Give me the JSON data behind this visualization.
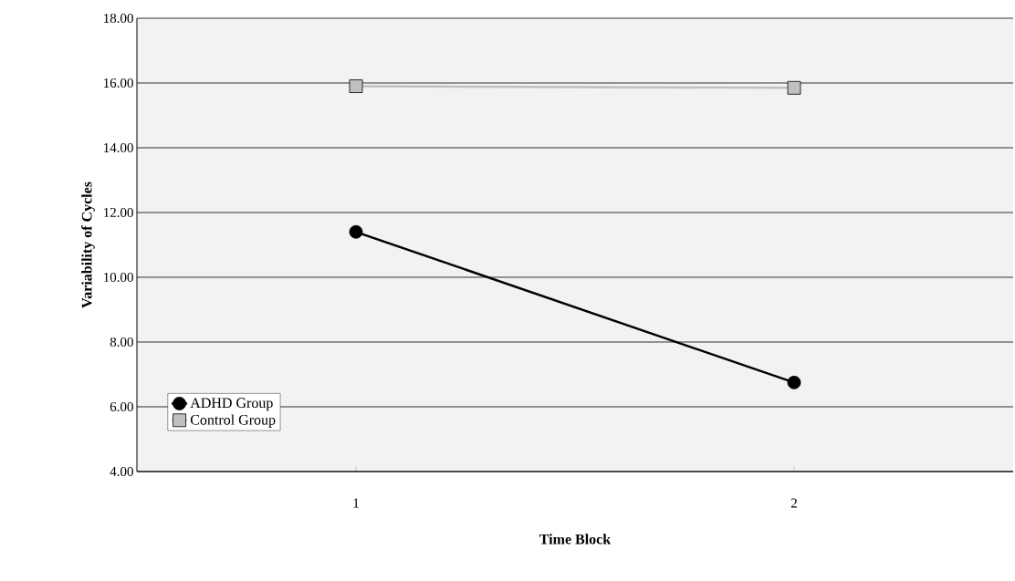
{
  "chart_data": {
    "type": "line",
    "xlabel": "Time Block",
    "ylabel": "Variability of Cycles",
    "x": [
      1,
      2
    ],
    "xlim": [
      0.5,
      2.5
    ],
    "xticks": [
      1,
      2
    ],
    "series": [
      {
        "name": "ADHD Group",
        "color": "#000000",
        "marker": "circle",
        "values": [
          11.4,
          6.75
        ]
      },
      {
        "name": "Control Group",
        "color": "#c0c0c0",
        "marker": "square",
        "values": [
          15.9,
          15.85
        ]
      }
    ],
    "ylim": [
      4,
      18
    ],
    "yticks": [
      {
        "value": 4,
        "label": "4.00"
      },
      {
        "value": 6,
        "label": "6.00"
      },
      {
        "value": 8,
        "label": "8.00"
      },
      {
        "value": 10,
        "label": "10.00"
      },
      {
        "value": 12,
        "label": "12.00"
      },
      {
        "value": 14,
        "label": "14.00"
      },
      {
        "value": 16,
        "label": "16.00"
      },
      {
        "value": 18,
        "label": "18.00"
      }
    ],
    "grid": "y",
    "legend": "bottom left",
    "line_style": "solid"
  }
}
